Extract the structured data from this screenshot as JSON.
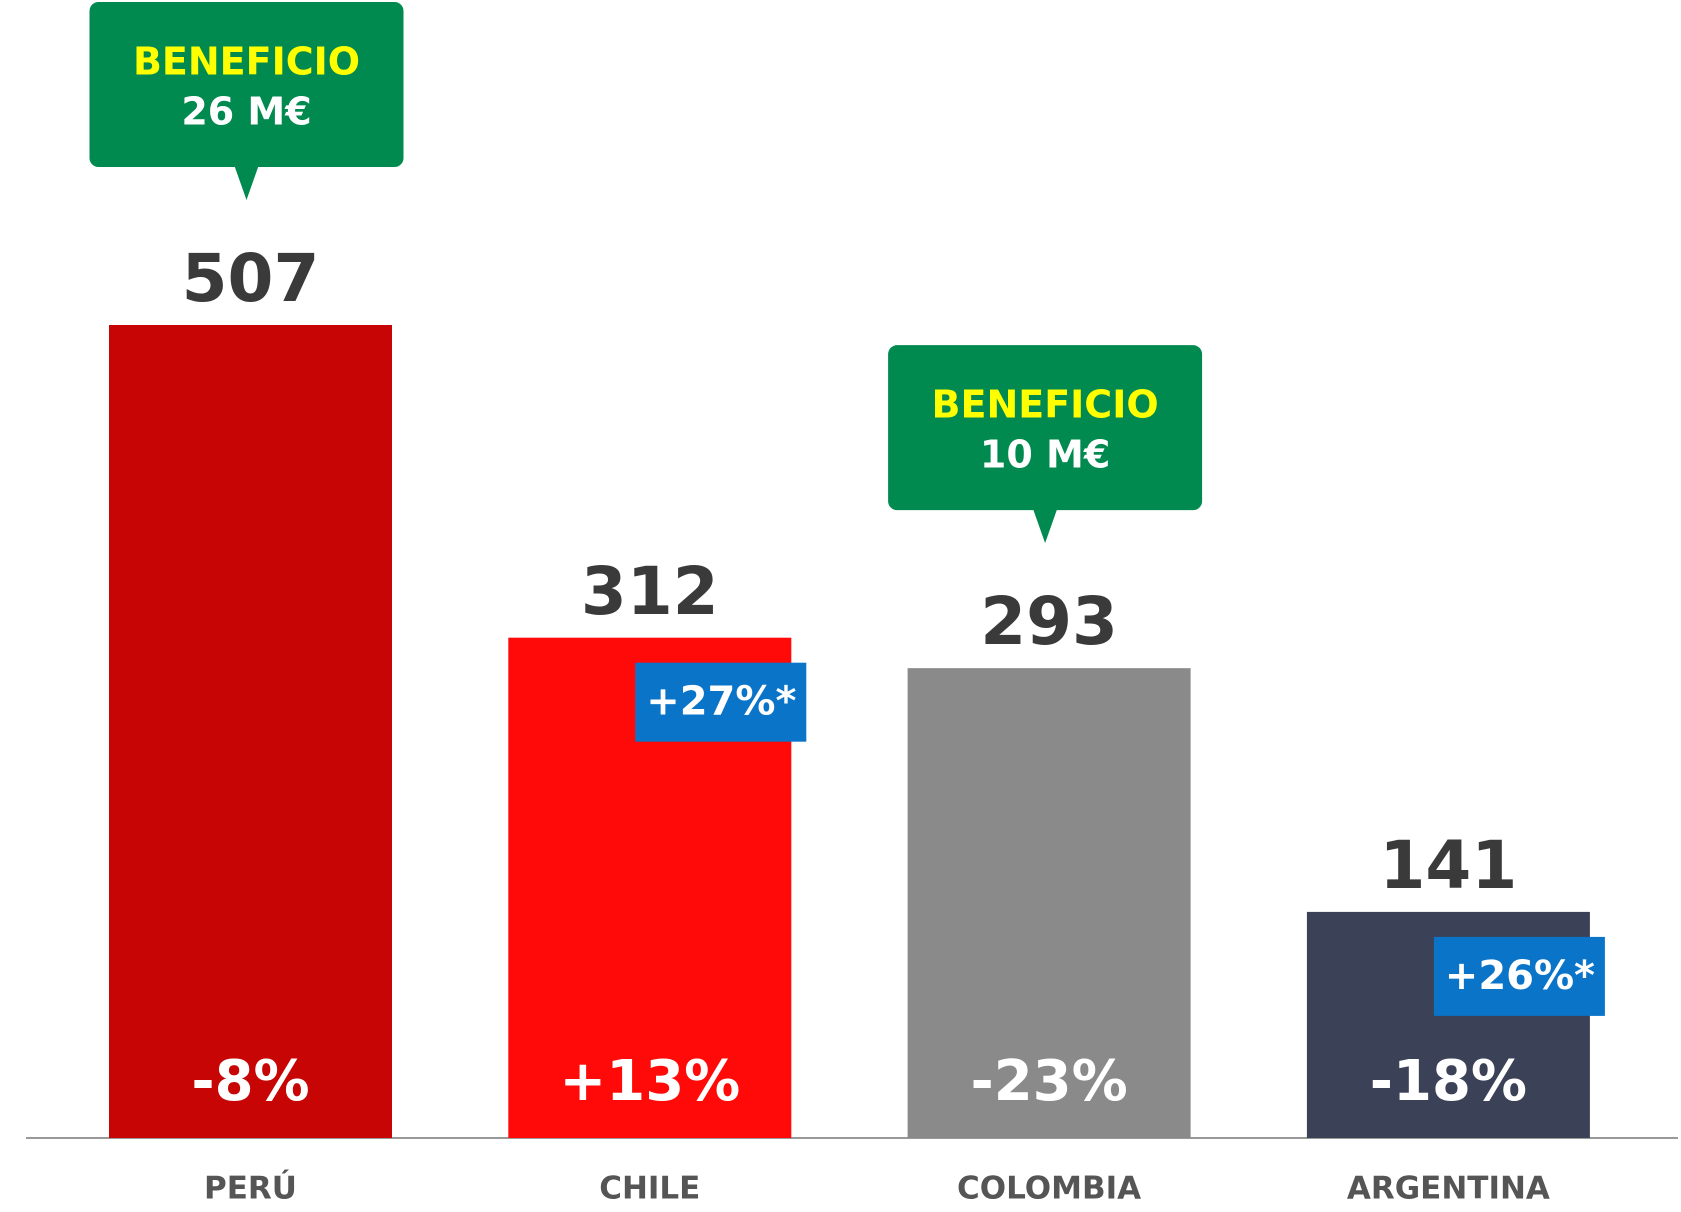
{
  "chart_data": {
    "type": "bar",
    "categories": [
      "PERÚ",
      "CHILE",
      "COLOMBIA",
      "ARGENTINA"
    ],
    "values": [
      507,
      312,
      293,
      141
    ],
    "colors": [
      "#c80505",
      "#ff0909",
      "#8a8a8a",
      "#3b4157"
    ],
    "changes": [
      "-8%",
      "+13%",
      "-23%",
      "-18%"
    ],
    "badges": [
      {
        "category": "CHILE",
        "text": "+27%*"
      },
      {
        "category": "ARGENTINA",
        "text": "+26%*"
      }
    ],
    "callouts": [
      {
        "category": "PERÚ",
        "title": "BENEFICIO",
        "text": "26 M€"
      },
      {
        "category": "COLOMBIA",
        "title": "BENEFICIO",
        "text": "10 M€"
      }
    ]
  }
}
